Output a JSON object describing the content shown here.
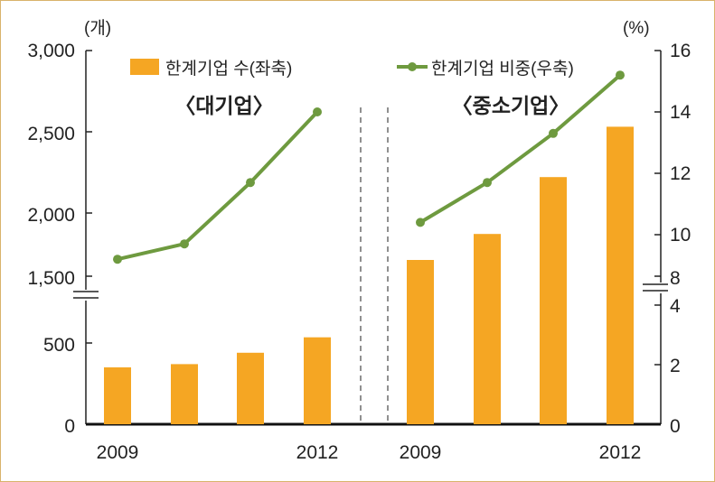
{
  "chart_data": {
    "type": "bar",
    "left_axis": {
      "unit_label": "(개)",
      "ticks": [
        "0",
        "500",
        "1,500",
        "2,000",
        "2,500",
        "3,000"
      ],
      "break_between": [
        700,
        1400
      ]
    },
    "right_axis": {
      "unit_label": "(%)",
      "ticks": [
        "0",
        "2",
        "4",
        "8",
        "10",
        "12",
        "14",
        "16"
      ],
      "break_between": [
        4.3,
        7.5
      ]
    },
    "legend": {
      "bar_label": "한계기업 수(좌축)",
      "line_label": "한계기업 비중(우축)",
      "placement": "top"
    },
    "colors": {
      "bar": "#f5a623",
      "line": "#6e9a3f",
      "axis": "#222222"
    },
    "panels": [
      {
        "title": "〈대기업〉",
        "x_labels": [
          "2009",
          "",
          "",
          "2012"
        ],
        "bar_values": [
          350,
          370,
          440,
          535
        ],
        "line_values": [
          9.2,
          9.7,
          11.7,
          14.0
        ]
      },
      {
        "title": "〈중소기업〉",
        "x_labels": [
          "2009",
          "",
          "",
          "2012"
        ],
        "bar_values": [
          1600,
          1760,
          2110,
          2420
        ],
        "line_values": [
          10.4,
          11.7,
          13.3,
          15.2
        ]
      }
    ]
  }
}
